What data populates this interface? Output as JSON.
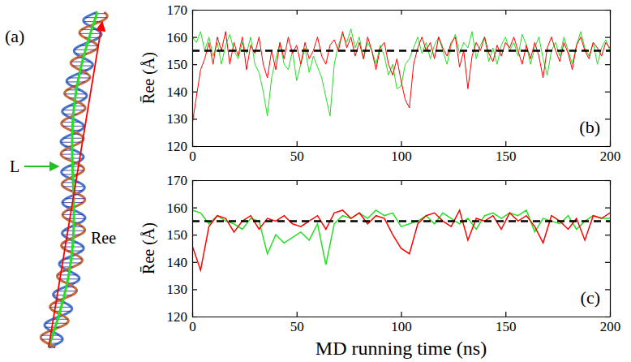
{
  "panel_a": {
    "label": "(a)",
    "contour_label": "L",
    "end_to_end_label": "Ree"
  },
  "chart_data": [
    {
      "type": "line",
      "y_label": "R̄ee (Å)",
      "annotation": "(b)",
      "xlim": [
        0,
        200
      ],
      "xticks": [
        0,
        50,
        100,
        150,
        200
      ],
      "ylim": [
        120,
        170
      ],
      "yticks": [
        120,
        130,
        140,
        150,
        160,
        170
      ],
      "x": [
        0,
        2,
        4,
        6,
        8,
        10,
        12,
        14,
        16,
        18,
        20,
        22,
        24,
        26,
        28,
        30,
        32,
        34,
        36,
        38,
        40,
        42,
        44,
        46,
        48,
        50,
        52,
        54,
        56,
        58,
        60,
        62,
        64,
        66,
        68,
        70,
        72,
        74,
        76,
        78,
        80,
        82,
        84,
        86,
        88,
        90,
        92,
        94,
        96,
        98,
        100,
        102,
        104,
        106,
        108,
        110,
        112,
        114,
        116,
        118,
        120,
        122,
        124,
        126,
        128,
        130,
        132,
        134,
        136,
        138,
        140,
        142,
        144,
        146,
        148,
        150,
        152,
        154,
        156,
        158,
        160,
        162,
        164,
        166,
        168,
        170,
        172,
        174,
        176,
        178,
        180,
        182,
        184,
        186,
        188,
        190,
        192,
        194,
        196,
        198,
        200
      ],
      "series": [
        {
          "color": "#22e022",
          "values": [
            160,
            158,
            162,
            155,
            160,
            153,
            158,
            150,
            157,
            161,
            155,
            152,
            158,
            154,
            160,
            150,
            147,
            140,
            131,
            145,
            152,
            158,
            150,
            148,
            155,
            144,
            150,
            156,
            147,
            153,
            149,
            145,
            138,
            131,
            150,
            157,
            161,
            158,
            163,
            156,
            160,
            152,
            158,
            155,
            150,
            157,
            153,
            146,
            150,
            141,
            142,
            150,
            152,
            156,
            160,
            154,
            158,
            152,
            157,
            160,
            155,
            150,
            157,
            161,
            154,
            158,
            156,
            162,
            152,
            157,
            160,
            151,
            156,
            150,
            157,
            160,
            155,
            158,
            153,
            161,
            157,
            150,
            156,
            160,
            152,
            146,
            155,
            158,
            153,
            160,
            155,
            150,
            157,
            162,
            156,
            153,
            158,
            150,
            156,
            159,
            155
          ]
        },
        {
          "color": "#ff0000",
          "values": [
            128,
            138,
            148,
            152,
            158,
            150,
            160,
            155,
            162,
            150,
            158,
            153,
            160,
            148,
            157,
            154,
            160,
            150,
            145,
            155,
            148,
            158,
            152,
            160,
            154,
            157,
            150,
            158,
            152,
            155,
            160,
            153,
            150,
            157,
            159,
            155,
            162,
            156,
            160,
            153,
            158,
            152,
            160,
            155,
            148,
            156,
            158,
            150,
            146,
            152,
            144,
            137,
            134,
            150,
            156,
            160,
            155,
            158,
            152,
            160,
            156,
            153,
            158,
            160,
            149,
            155,
            141,
            153,
            158,
            155,
            160,
            154,
            151,
            157,
            153,
            158,
            156,
            160,
            155,
            150,
            157,
            152,
            158,
            153,
            145,
            156,
            160,
            155,
            151,
            158,
            154,
            148,
            157,
            160,
            155,
            152,
            158,
            156,
            153,
            158,
            156
          ]
        },
        {
          "color": "#000000",
          "line_style": "dashed",
          "x": [
            0,
            200
          ],
          "values": [
            155,
            155
          ]
        }
      ]
    },
    {
      "type": "line",
      "y_label": "R̄ee (Å)",
      "x_label": "MD running time (ns)",
      "annotation": "(c)",
      "xlim": [
        0,
        200
      ],
      "xticks": [
        0,
        50,
        100,
        150,
        200
      ],
      "ylim": [
        120,
        170
      ],
      "yticks": [
        120,
        130,
        140,
        150,
        160,
        170
      ],
      "x": [
        0,
        4,
        8,
        12,
        16,
        20,
        24,
        28,
        32,
        36,
        40,
        44,
        48,
        52,
        56,
        60,
        64,
        68,
        72,
        76,
        80,
        84,
        88,
        92,
        96,
        100,
        104,
        108,
        112,
        116,
        120,
        124,
        128,
        132,
        136,
        140,
        144,
        148,
        152,
        156,
        160,
        164,
        168,
        172,
        176,
        180,
        184,
        188,
        192,
        196,
        200
      ],
      "series": [
        {
          "color": "#22e022",
          "values": [
            159,
            158,
            154,
            157,
            155,
            154,
            152,
            156,
            155,
            143,
            150,
            147,
            149,
            151,
            148,
            154,
            139,
            154,
            157,
            156,
            158,
            156,
            159,
            157,
            158,
            153,
            154,
            155,
            157,
            154,
            158,
            156,
            154,
            156,
            152,
            157,
            158,
            156,
            158,
            157,
            159,
            151,
            156,
            155,
            154,
            157,
            152,
            155,
            157,
            156,
            156
          ]
        },
        {
          "color": "#ff0000",
          "values": [
            146,
            137,
            153,
            157,
            156,
            151,
            155,
            157,
            152,
            156,
            155,
            157,
            154,
            153,
            155,
            157,
            152,
            158,
            159,
            156,
            158,
            154,
            157,
            156,
            150,
            145,
            143,
            154,
            157,
            158,
            155,
            153,
            159,
            148,
            156,
            155,
            157,
            152,
            158,
            155,
            157,
            153,
            147,
            157,
            155,
            152,
            156,
            148,
            157,
            156,
            158
          ]
        },
        {
          "color": "#000000",
          "line_style": "dashed",
          "x": [
            0,
            200
          ],
          "values": [
            155,
            155
          ]
        }
      ]
    }
  ]
}
